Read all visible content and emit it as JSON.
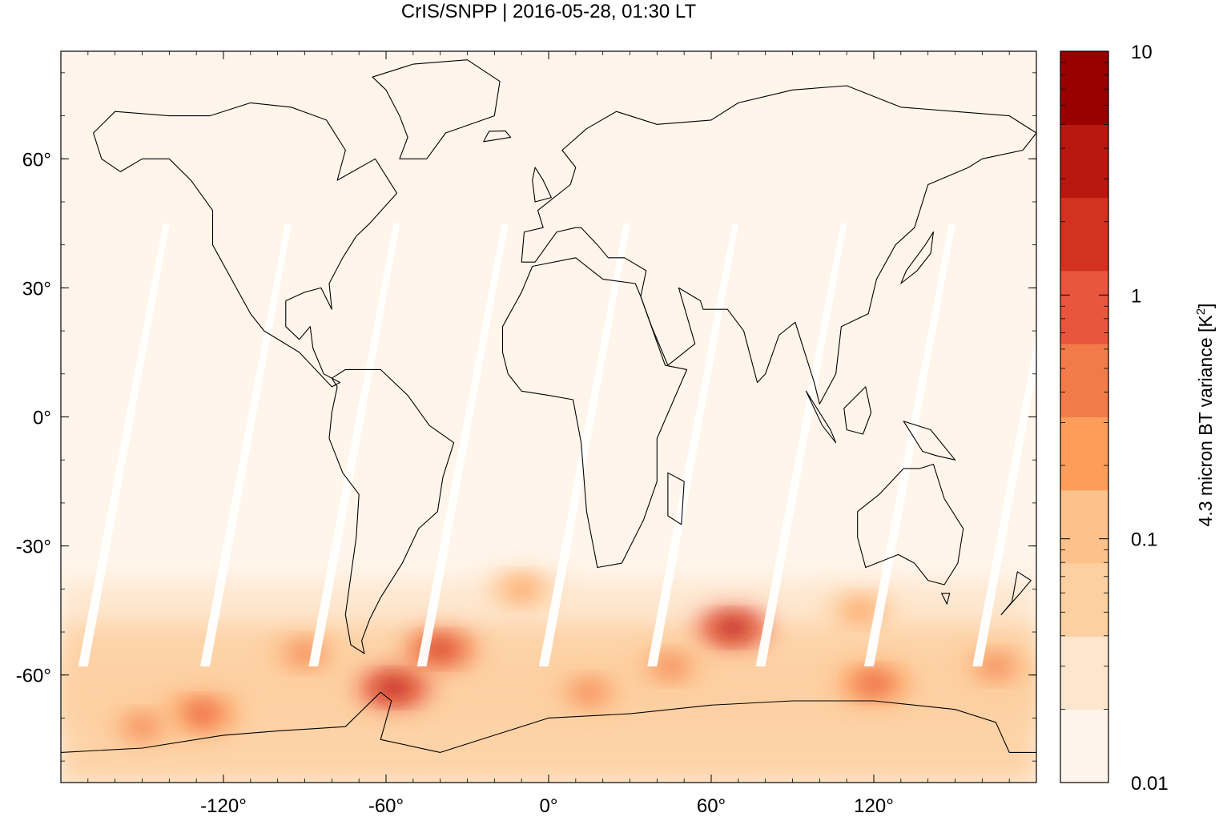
{
  "chart_data": {
    "type": "heatmap",
    "title": "CrIS/SNPP | 2016-05-28, 01:30 LT",
    "xlabel": "",
    "ylabel": "",
    "xlim": [
      -180,
      180
    ],
    "ylim": [
      -85,
      85
    ],
    "x_ticks": [
      {
        "value": -120,
        "label": "-120°"
      },
      {
        "value": -60,
        "label": "-60°"
      },
      {
        "value": 0,
        "label": "0°"
      },
      {
        "value": 60,
        "label": "60°"
      },
      {
        "value": 120,
        "label": "120°"
      }
    ],
    "y_ticks": [
      {
        "value": 60,
        "label": "60°"
      },
      {
        "value": 30,
        "label": "30°"
      },
      {
        "value": 0,
        "label": "0°"
      },
      {
        "value": -30,
        "label": "-30°"
      },
      {
        "value": -60,
        "label": "-60°"
      }
    ],
    "colorbar": {
      "label": "4.3 micron BT variance [K",
      "label_superscript": "2",
      "label_suffix": "]",
      "scale": "log",
      "range": [
        0.01,
        10
      ],
      "tick_labels": [
        {
          "value": 10,
          "label": "10"
        },
        {
          "value": 1,
          "label": "1"
        },
        {
          "value": 0.1,
          "label": "0.1"
        },
        {
          "value": 0.01,
          "label": "0.01"
        }
      ],
      "colors": [
        "#fff5eb",
        "#fee6ce",
        "#fdd0a2",
        "#fdc28c",
        "#fd9d5a",
        "#f37b4a",
        "#e8573d",
        "#d43220",
        "#b81810",
        "#990000"
      ]
    },
    "missing_swath_lons_at_equator": [
      -155,
      -110,
      -70,
      -30,
      15,
      55,
      95,
      135,
      175
    ],
    "hotspots": [
      {
        "lon": -57,
        "lat": -63,
        "value": 4.0
      },
      {
        "lon": -40,
        "lat": -54,
        "value": 1.5
      },
      {
        "lon": -128,
        "lat": -69,
        "value": 1.0
      },
      {
        "lon": 68,
        "lat": -49,
        "value": 5.0
      },
      {
        "lon": 120,
        "lat": -62,
        "value": 0.8
      },
      {
        "lon": 15,
        "lat": -64,
        "value": 0.6
      },
      {
        "lon": 45,
        "lat": -58,
        "value": 0.5
      },
      {
        "lon": -10,
        "lat": -40,
        "value": 0.3
      },
      {
        "lon": 115,
        "lat": -45,
        "value": 0.3
      },
      {
        "lon": -150,
        "lat": -72,
        "value": 0.6
      },
      {
        "lon": 165,
        "lat": -58,
        "value": 0.5
      },
      {
        "lon": -90,
        "lat": -55,
        "value": 0.4
      }
    ]
  }
}
